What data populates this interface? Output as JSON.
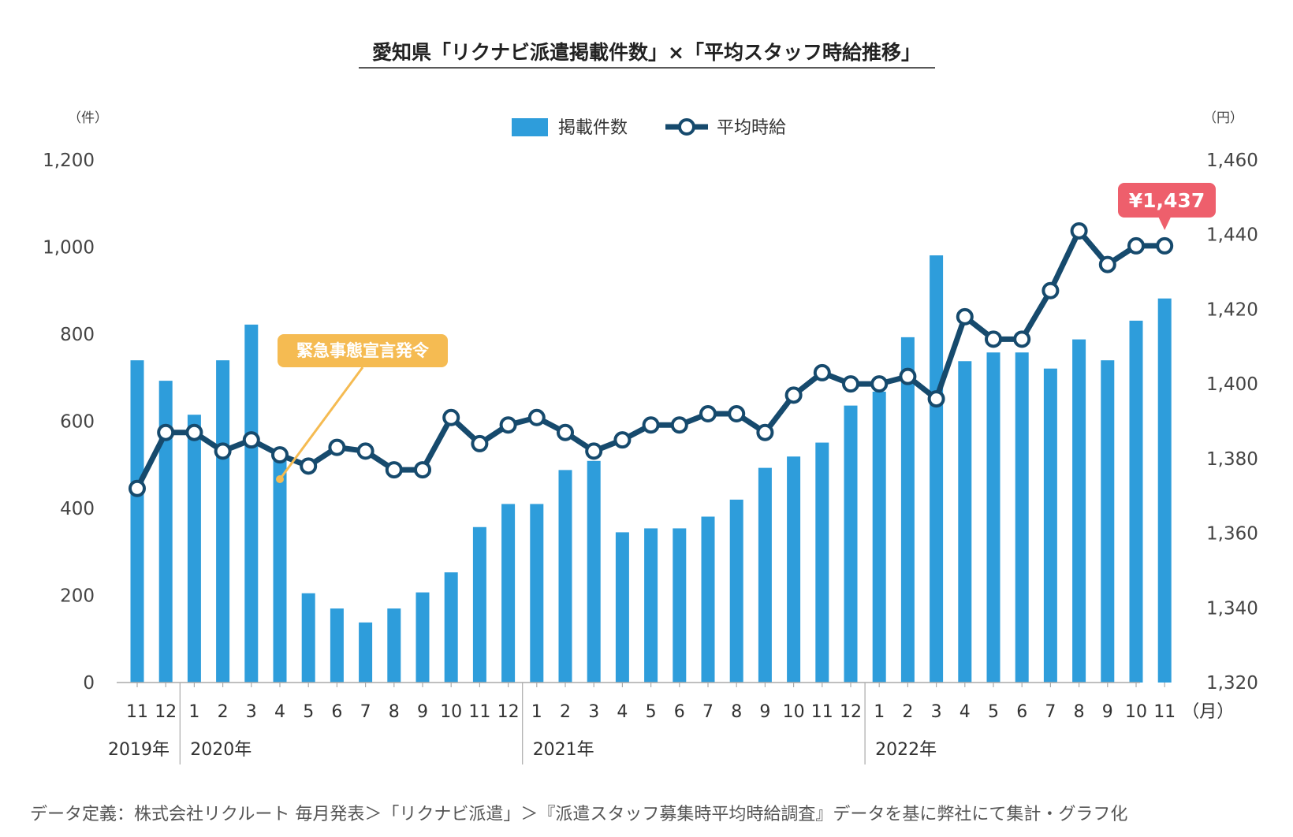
{
  "title": "愛知県「リクナビ派遣掲載件数」×「平均スタッフ時給推移」",
  "footer": "データ定義：株式会社リクルート 毎月発表＞「リクナビ派遣」＞『派遣スタッフ募集時平均時給調査』データを基に弊社にて集計・グラフ化",
  "colors": {
    "bar": "#2e9ddb",
    "line": "#164a6d",
    "callout": "#f5bb52",
    "price": "#ee5f6c"
  },
  "chart_data": {
    "type": "bar+line",
    "left_unit": "（件）",
    "right_unit": "（円）",
    "month_unit": "（月）",
    "left_axis": {
      "min": 0,
      "max": 1200,
      "ticks": [
        0,
        200,
        400,
        600,
        800,
        1000,
        1200
      ],
      "tick_labels": [
        "0",
        "200",
        "400",
        "600",
        "800",
        "1,000",
        "1,200"
      ]
    },
    "right_axis": {
      "min": 1320,
      "max": 1460,
      "ticks": [
        1320,
        1340,
        1360,
        1380,
        1400,
        1420,
        1440,
        1460
      ],
      "tick_labels": [
        "1,320",
        "1,340",
        "1,360",
        "1,380",
        "1,400",
        "1,420",
        "1,440",
        "1,460"
      ]
    },
    "months": [
      "11",
      "12",
      "1",
      "2",
      "3",
      "4",
      "5",
      "6",
      "7",
      "8",
      "9",
      "10",
      "11",
      "12",
      "1",
      "2",
      "3",
      "4",
      "5",
      "6",
      "7",
      "8",
      "9",
      "10",
      "11",
      "12",
      "1",
      "2",
      "3",
      "4",
      "5",
      "6",
      "7",
      "8",
      "9",
      "10",
      "11"
    ],
    "years": [
      {
        "label": "2019年",
        "start": 0
      },
      {
        "label": "2020年",
        "start": 2
      },
      {
        "label": "2021年",
        "start": 14
      },
      {
        "label": "2022年",
        "start": 26
      }
    ],
    "series": [
      {
        "name": "掲載件数",
        "type": "bar",
        "axis": "left",
        "values": [
          740,
          693,
          615,
          740,
          822,
          519,
          205,
          170,
          138,
          170,
          207,
          253,
          357,
          410,
          410,
          488,
          509,
          345,
          354,
          354,
          381,
          420,
          493,
          519,
          551,
          636,
          668,
          793,
          981,
          738,
          758,
          758,
          721,
          788,
          740,
          831,
          882
        ]
      },
      {
        "name": "平均時給",
        "type": "line",
        "axis": "right",
        "values": [
          1372,
          1387,
          1387,
          1382,
          1385,
          1381,
          1378,
          1383,
          1382,
          1377,
          1377,
          1391,
          1384,
          1389,
          1391,
          1387,
          1382,
          1385,
          1389,
          1389,
          1392,
          1392,
          1387,
          1397,
          1403,
          1400,
          1400,
          1402,
          1396,
          1418,
          1412,
          1412,
          1425,
          1441,
          1432,
          1437,
          1437
        ]
      }
    ],
    "annotations": [
      {
        "text": "緊急事態宣言発令",
        "index": 5,
        "target_value": 467,
        "axis": "left"
      },
      {
        "text": "¥1,437",
        "index": 36,
        "target_value": 1437,
        "axis": "right"
      }
    ]
  }
}
